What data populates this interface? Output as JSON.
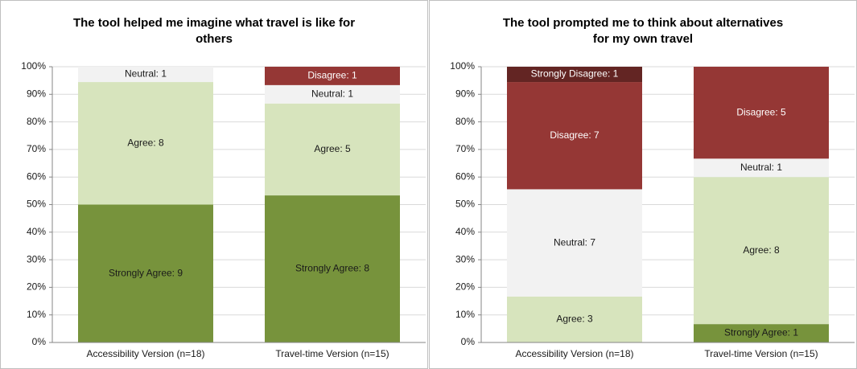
{
  "chart_data": [
    {
      "type": "bar",
      "stack": "percent",
      "title": "The tool helped me imagine what travel is like for others",
      "categories": [
        "Accessibility Version (n=18)",
        "Travel-time Version (n=15)"
      ],
      "series": [
        {
          "name": "Strongly Agree",
          "color": "#77933c",
          "label_color": "#1a1a1a",
          "values": [
            9,
            8
          ],
          "value_labels": [
            "Strongly Agree: 9",
            "Strongly Agree: 8"
          ]
        },
        {
          "name": "Agree",
          "color": "#d7e4bd",
          "label_color": "#1a1a1a",
          "values": [
            8,
            5
          ],
          "value_labels": [
            "Agree: 8",
            "Agree: 5"
          ]
        },
        {
          "name": "Neutral",
          "color": "#f2f2f2",
          "label_color": "#1a1a1a",
          "values": [
            1,
            1
          ],
          "value_labels": [
            "Neutral: 1",
            "Neutral: 1"
          ]
        },
        {
          "name": "Disagree",
          "color": "#953735",
          "label_color": "#ffffff",
          "values": [
            null,
            1
          ],
          "value_labels": [
            null,
            "Disagree: 1"
          ]
        }
      ],
      "ylim": [
        0,
        100
      ],
      "yticks": [
        {
          "value": 0,
          "label": "0%"
        },
        {
          "value": 10,
          "label": "10%"
        },
        {
          "value": 20,
          "label": "20%"
        },
        {
          "value": 30,
          "label": "30%"
        },
        {
          "value": 40,
          "label": "40%"
        },
        {
          "value": 50,
          "label": "50%"
        },
        {
          "value": 60,
          "label": "60%"
        },
        {
          "value": 70,
          "label": "70%"
        },
        {
          "value": 80,
          "label": "80%"
        },
        {
          "value": 90,
          "label": "90%"
        },
        {
          "value": 100,
          "label": "100%"
        }
      ],
      "grid": true
    },
    {
      "type": "bar",
      "stack": "percent",
      "title": "The tool prompted me to think about alternatives for my own travel",
      "categories": [
        "Accessibility Version (n=18)",
        "Travel-time Version (n=15)"
      ],
      "series": [
        {
          "name": "Strongly Agree",
          "color": "#77933c",
          "label_color": "#1a1a1a",
          "values": [
            null,
            1
          ],
          "value_labels": [
            null,
            "Strongly Agree: 1"
          ]
        },
        {
          "name": "Agree",
          "color": "#d7e4bd",
          "label_color": "#1a1a1a",
          "values": [
            3,
            8
          ],
          "value_labels": [
            "Agree: 3",
            "Agree: 8"
          ]
        },
        {
          "name": "Neutral",
          "color": "#f2f2f2",
          "label_color": "#1a1a1a",
          "values": [
            7,
            1
          ],
          "value_labels": [
            "Neutral: 7",
            "Neutral: 1"
          ]
        },
        {
          "name": "Disagree",
          "color": "#953735",
          "label_color": "#ffffff",
          "values": [
            7,
            5
          ],
          "value_labels": [
            "Disagree: 7",
            "Disagree: 5"
          ]
        },
        {
          "name": "Strongly Disagree",
          "color": "#632523",
          "label_color": "#ffffff",
          "values": [
            1,
            null
          ],
          "value_labels": [
            "Strongly Disagree: 1",
            null
          ]
        }
      ],
      "ylim": [
        0,
        100
      ],
      "yticks": [
        {
          "value": 0,
          "label": "0%"
        },
        {
          "value": 10,
          "label": "10%"
        },
        {
          "value": 20,
          "label": "20%"
        },
        {
          "value": 30,
          "label": "30%"
        },
        {
          "value": 40,
          "label": "40%"
        },
        {
          "value": 50,
          "label": "50%"
        },
        {
          "value": 60,
          "label": "60%"
        },
        {
          "value": 70,
          "label": "70%"
        },
        {
          "value": 80,
          "label": "80%"
        },
        {
          "value": 90,
          "label": "90%"
        },
        {
          "value": 100,
          "label": "100%"
        }
      ],
      "grid": true
    }
  ]
}
